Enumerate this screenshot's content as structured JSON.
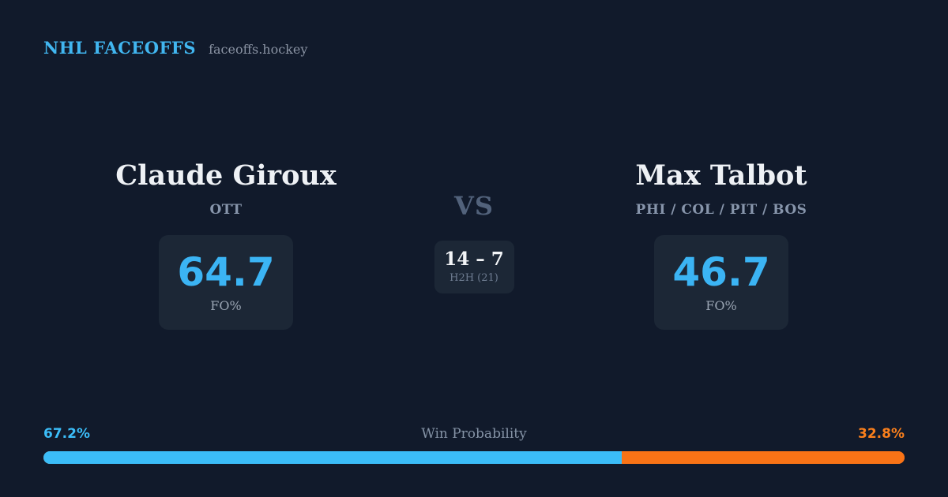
{
  "header": {
    "brand": "NHL FACEOFFS",
    "site": "faceoffs.hockey"
  },
  "matchup": {
    "vs_label": "VS",
    "h2h": {
      "score": "14 – 7",
      "label": "H2H (21)"
    },
    "players": [
      {
        "name": "Claude Giroux",
        "teams": "OTT",
        "fo_pct": "64.7",
        "fo_label": "FO%"
      },
      {
        "name": "Max Talbot",
        "teams": "PHI / COL / PIT / BOS",
        "fo_pct": "46.7",
        "fo_label": "FO%"
      }
    ]
  },
  "win_probability": {
    "title": "Win Probability",
    "left_pct_label": "67.2%",
    "right_pct_label": "32.8%",
    "left_value": 67.2,
    "right_value": 32.8
  },
  "colors": {
    "background": "#111a2b",
    "panel": "#1c2736",
    "accent_blue": "#3bbdf8",
    "accent_orange": "#f97316",
    "brand_blue": "#41b6f0",
    "text_primary": "#eef1f5",
    "text_muted": "#8795ab"
  }
}
